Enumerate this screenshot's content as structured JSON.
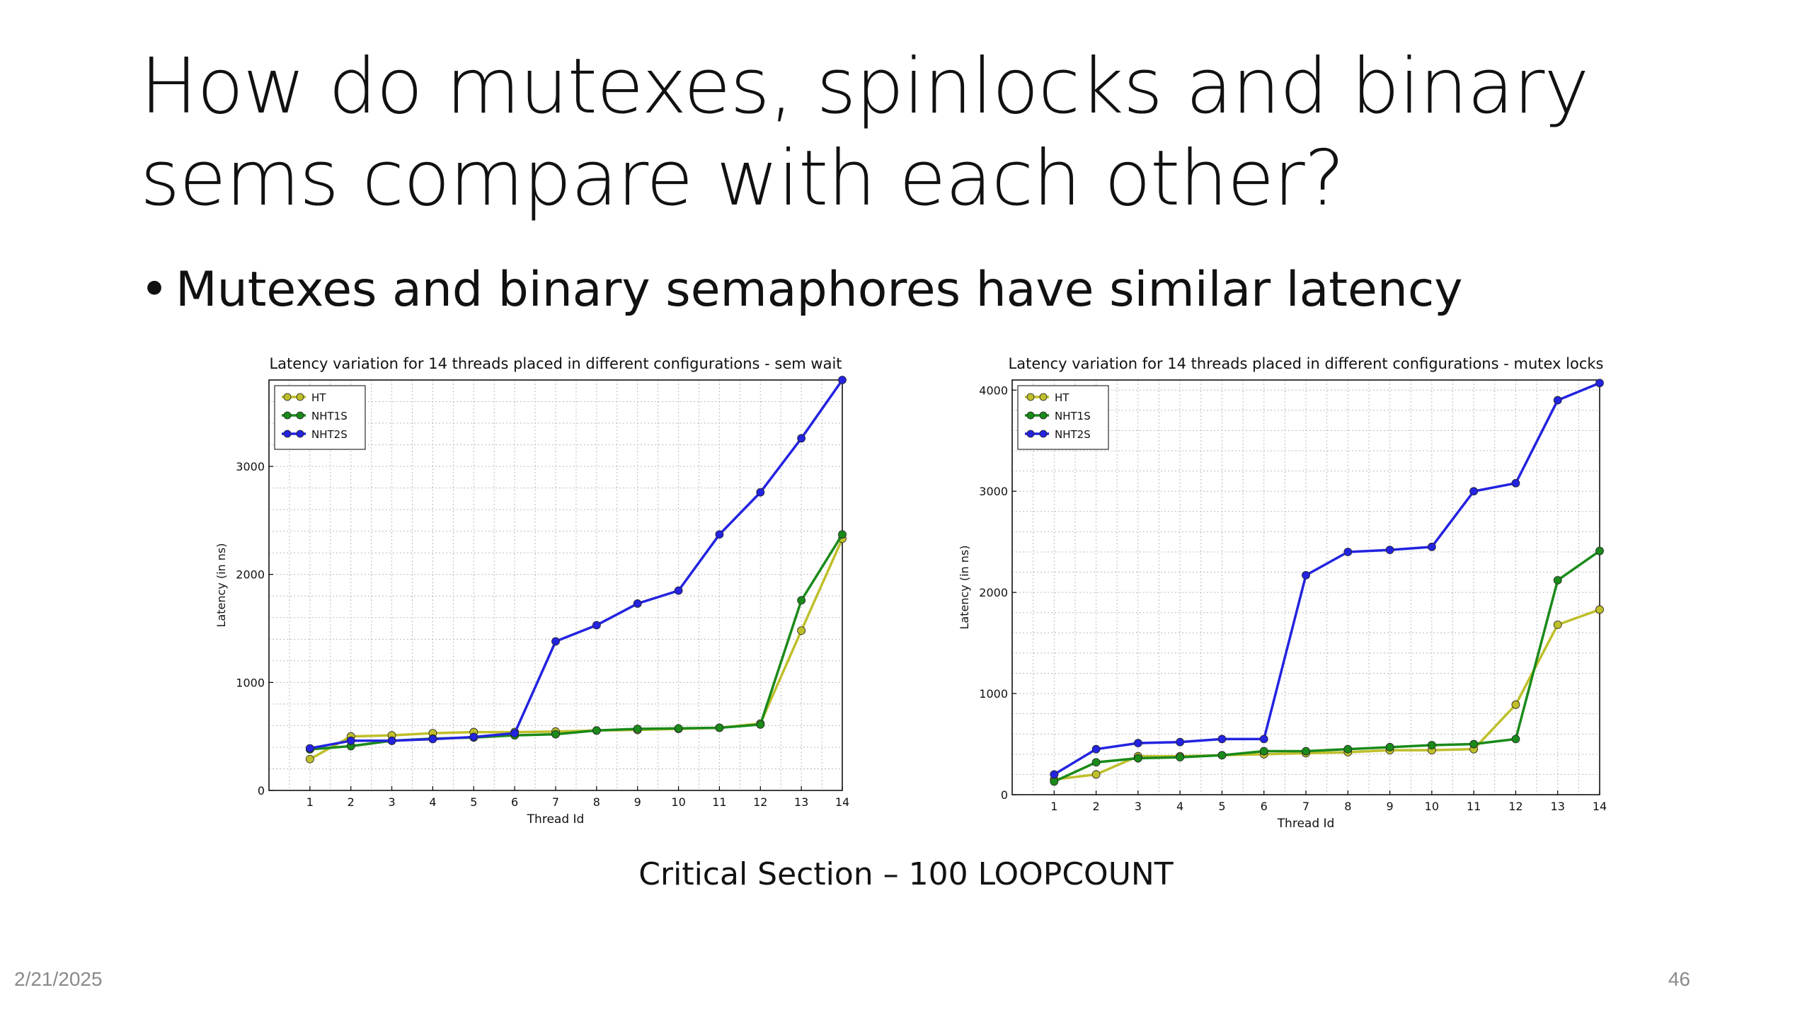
{
  "slide": {
    "title": "How do mutexes, spinlocks and binary sems compare with each other?",
    "bullet": "Mutexes and binary semaphores have similar latency",
    "bullet_marker": "•",
    "caption": "Critical Section – 100 LOOPCOUNT",
    "date": "2/21/2025",
    "page_number": "46"
  },
  "chart_data": [
    {
      "type": "line",
      "title": "Latency variation for 14 threads placed in different configurations - sem wait",
      "xlabel": "Thread Id",
      "ylabel": "Latency (in ns)",
      "x": [
        1,
        2,
        3,
        4,
        5,
        6,
        7,
        8,
        9,
        10,
        11,
        12,
        13,
        14
      ],
      "xlim": [
        0,
        14
      ],
      "ylim": [
        0,
        3800
      ],
      "yticks": [
        0,
        1000,
        2000,
        3000
      ],
      "grid": true,
      "legend_position": "top-left",
      "series": [
        {
          "name": "HT",
          "color": "#bfbf2a",
          "values": [
            290,
            500,
            510,
            530,
            540,
            540,
            545,
            555,
            560,
            570,
            580,
            620,
            1480,
            2330
          ]
        },
        {
          "name": "NHT1S",
          "color": "#1a8a1a",
          "values": [
            380,
            410,
            460,
            480,
            490,
            510,
            520,
            555,
            570,
            575,
            580,
            610,
            1760,
            2370
          ]
        },
        {
          "name": "NHT2S",
          "color": "#2323e0",
          "values": [
            390,
            460,
            460,
            475,
            495,
            530,
            1380,
            1530,
            1730,
            1850,
            2370,
            2760,
            3260,
            3800
          ]
        }
      ]
    },
    {
      "type": "line",
      "title": "Latency variation for 14 threads placed in different configurations - mutex locks",
      "xlabel": "Thread Id",
      "ylabel": "Latency (in ns)",
      "x": [
        1,
        2,
        3,
        4,
        5,
        6,
        7,
        8,
        9,
        10,
        11,
        12,
        13,
        14
      ],
      "xlim": [
        0,
        14
      ],
      "ylim": [
        0,
        4100
      ],
      "yticks": [
        0,
        1000,
        2000,
        3000,
        4000
      ],
      "grid": true,
      "legend_position": "top-left",
      "series": [
        {
          "name": "HT",
          "color": "#bfbf2a",
          "values": [
            150,
            200,
            380,
            380,
            390,
            400,
            410,
            420,
            440,
            440,
            450,
            890,
            1680,
            1830
          ]
        },
        {
          "name": "NHT1S",
          "color": "#1a8a1a",
          "values": [
            130,
            320,
            360,
            370,
            390,
            430,
            430,
            450,
            470,
            490,
            500,
            550,
            2120,
            2410
          ]
        },
        {
          "name": "NHT2S",
          "color": "#2323e0",
          "values": [
            200,
            450,
            510,
            520,
            550,
            550,
            2170,
            2400,
            2420,
            2450,
            3000,
            3080,
            3900,
            4070
          ]
        }
      ]
    }
  ]
}
